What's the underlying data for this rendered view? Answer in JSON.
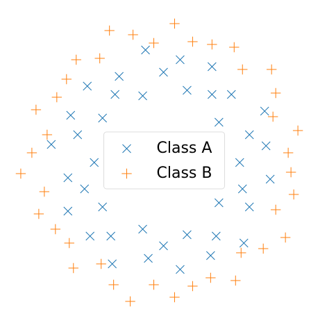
{
  "chart_data": {
    "type": "scatter",
    "xlim": [
      -1.18,
      1.18
    ],
    "ylim": [
      -1.17,
      1.17
    ],
    "legend": "center",
    "series": [
      {
        "name": "Class A",
        "color": "#1f77b4",
        "marker": "x",
        "x": [
          0.55,
          0.74,
          0.62,
          0.73,
          0.4,
          0.49,
          0.35,
          0.35,
          0.17,
          0.12,
          0,
          -0.13,
          -0.15,
          -0.32,
          -0.35,
          -0.55,
          -0.44,
          -0.67,
          -0.62,
          -0.81,
          -0.5,
          -0.69,
          -0.57,
          -0.69,
          -0.44,
          -0.53,
          -0.38,
          -0.37,
          -0.15,
          -0.11,
          0,
          0.12,
          0.17,
          0.34,
          0.38,
          0.58,
          0.4,
          0.62,
          0.57,
          0.77
        ],
        "y": [
          0,
          0.12,
          0.2,
          0.37,
          0.29,
          0.49,
          0.49,
          0.69,
          0.52,
          0.74,
          0.65,
          0.81,
          0.48,
          0.62,
          0.49,
          0.55,
          0.32,
          0.34,
          0.2,
          0.13,
          0,
          -0.11,
          -0.19,
          -0.35,
          -0.32,
          -0.53,
          -0.53,
          -0.73,
          -0.48,
          -0.69,
          -0.6,
          -0.77,
          -0.52,
          -0.67,
          -0.53,
          -0.58,
          -0.29,
          -0.32,
          -0.19,
          -0.12
        ]
      },
      {
        "name": "Class B",
        "color": "#ff7f0e",
        "marker": "+",
        "x": [
          0.9,
          0.97,
          0.79,
          0.81,
          0.78,
          0.57,
          0.51,
          0.35,
          0.21,
          0.08,
          -0.07,
          -0.22,
          -0.39,
          -0.46,
          -0.63,
          -0.7,
          -0.77,
          -0.92,
          -0.84,
          -0.95,
          -1.03,
          -0.86,
          -0.9,
          -0.78,
          -0.68,
          -0.65,
          -0.45,
          -0.36,
          -0.24,
          -0.07,
          0.08,
          0.21,
          0.34,
          0.52,
          0.56,
          0.72,
          0.88,
          0.81,
          0.94,
          0.92
        ],
        "y": [
          0.07,
          0.23,
          0.33,
          0.5,
          0.67,
          0.67,
          0.83,
          0.85,
          0.87,
          1.0,
          0.86,
          0.92,
          0.95,
          0.75,
          0.74,
          0.6,
          0.47,
          0.38,
          0.2,
          0.07,
          -0.08,
          -0.21,
          -0.37,
          -0.48,
          -0.58,
          -0.76,
          -0.73,
          -0.88,
          -1.0,
          -0.88,
          -0.97,
          -0.89,
          -0.83,
          -0.85,
          -0.65,
          -0.62,
          -0.54,
          -0.34,
          -0.23,
          -0.07
        ]
      }
    ]
  }
}
